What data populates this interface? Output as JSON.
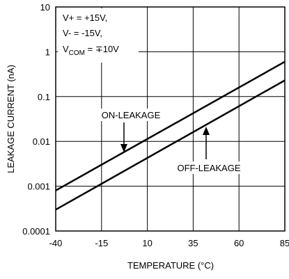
{
  "chart_data": {
    "type": "line",
    "title": "",
    "xlabel": "TEMPERATURE (°C)",
    "ylabel": "LEAKAGE CURRENT (nA)",
    "xlim": [
      -40,
      85
    ],
    "ylim": [
      0.0001,
      10
    ],
    "yscale": "log",
    "grid": true,
    "x_ticks": [
      "-40",
      "-15",
      "10",
      "35",
      "60",
      "85"
    ],
    "y_ticks": [
      "0.0001",
      "0.001",
      "0.01",
      "0.1",
      "1",
      "10"
    ],
    "conditions": {
      "line1": "V+ = +15V,",
      "line2": "V- = -15V,",
      "line3_main": "V",
      "line3_sub": "COM",
      "line3_rest": " = ∓10V"
    },
    "series": [
      {
        "name": "ON-LEAKAGE",
        "x": [
          -40,
          85
        ],
        "y": [
          0.0008,
          0.6
        ]
      },
      {
        "name": "OFF-LEAKAGE",
        "x": [
          -40,
          85
        ],
        "y": [
          0.0003,
          0.23
        ]
      }
    ]
  }
}
